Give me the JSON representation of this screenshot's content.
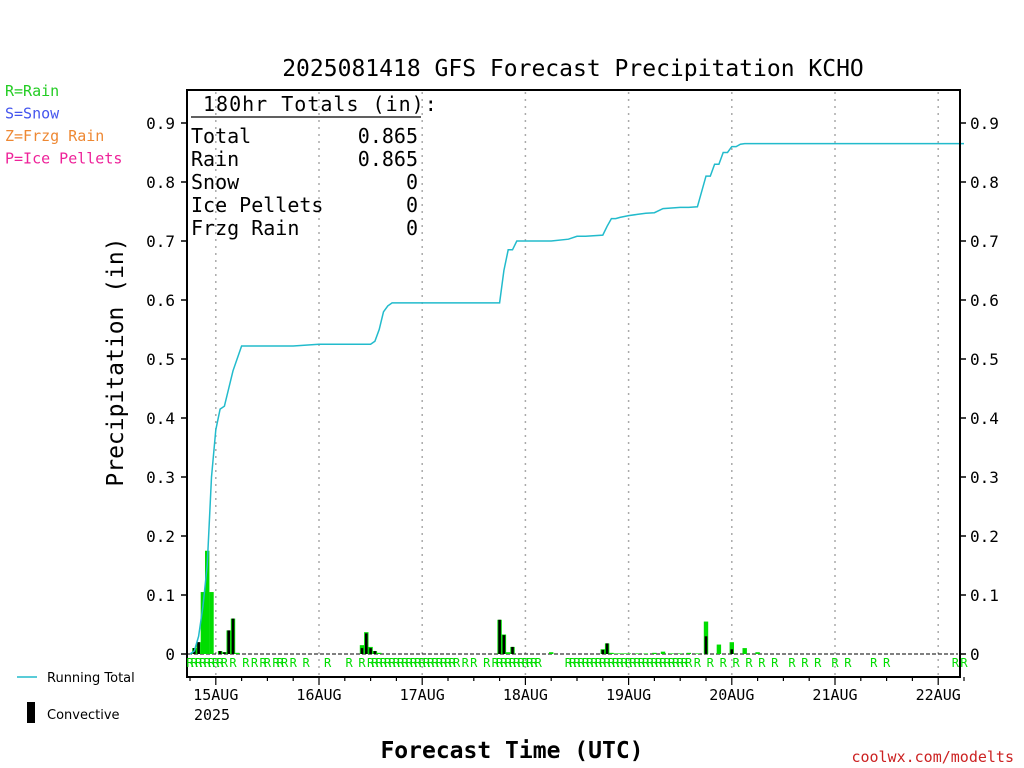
{
  "chart_data": {
    "type": "bar",
    "title": "2025081418 GFS Forecast Precipitation KCHO",
    "xlabel": "Forecast Time (UTC)",
    "ylabel": "Precipitation (in)",
    "ylim": [
      0,
      0.95
    ],
    "yticks": [
      "0",
      "0.1",
      "0.2",
      "0.3",
      "0.4",
      "0.5",
      "0.6",
      "0.7",
      "0.8",
      "0.9"
    ],
    "x_day_ticks": [
      "15AUG",
      "16AUG",
      "17AUG",
      "18AUG",
      "19AUG",
      "20AUG",
      "21AUG",
      "22AUG"
    ],
    "x_year_label": "2025",
    "grid": "vertical-dotted",
    "credit": "coolwx.com/modelts",
    "ptype_legend": [
      {
        "label": "R=Rain",
        "color": "#22cc22"
      },
      {
        "label": "S=Snow",
        "color": "#4455ee"
      },
      {
        "label": "Z=Frzg Rain",
        "color": "#ee8833"
      },
      {
        "label": "P=Ice Pellets",
        "color": "#ee2299"
      }
    ],
    "series_legend": [
      {
        "label": "Running Total",
        "color": "#22bbcc"
      },
      {
        "label": "Convective",
        "color": "#000000"
      }
    ],
    "totals_box": {
      "title": "180hr Totals (in):",
      "rows": [
        {
          "label": "Total",
          "value": "0.865"
        },
        {
          "label": "Rain",
          "value": "0.865"
        },
        {
          "label": "Snow",
          "value": "0"
        },
        {
          "label": "Ice Pellets",
          "value": "0"
        },
        {
          "label": "Frzg Rain",
          "value": "0"
        }
      ]
    },
    "colors": {
      "rain": "#00dd00",
      "convective": "#000000",
      "running_total": "#22bbcc",
      "axis": "#000000",
      "grid": "#aaaaaa"
    },
    "x_units": "hours after 2025-08-14 18Z",
    "running_total": {
      "x": [
        0,
        1,
        2,
        3,
        4,
        5,
        6,
        7,
        8,
        9,
        10,
        12,
        14,
        24,
        30,
        36,
        40,
        42,
        43,
        44,
        45,
        46,
        47,
        48,
        54,
        60,
        66,
        70,
        72,
        73,
        74,
        75,
        76,
        77,
        78,
        84,
        88,
        90,
        92,
        96,
        97,
        98,
        99,
        100,
        102,
        104,
        106,
        108,
        110,
        112,
        114,
        116,
        118,
        120,
        121,
        122,
        123,
        124,
        125,
        126,
        127,
        128,
        129,
        130,
        132,
        140,
        150,
        160,
        168,
        178,
        180
      ],
      "y": [
        0,
        0.005,
        0.03,
        0.08,
        0.15,
        0.3,
        0.38,
        0.415,
        0.42,
        0.45,
        0.48,
        0.522,
        0.522,
        0.522,
        0.525,
        0.525,
        0.525,
        0.525,
        0.53,
        0.55,
        0.58,
        0.59,
        0.595,
        0.595,
        0.595,
        0.595,
        0.595,
        0.595,
        0.595,
        0.65,
        0.685,
        0.685,
        0.7,
        0.7,
        0.7,
        0.7,
        0.703,
        0.708,
        0.708,
        0.71,
        0.725,
        0.738,
        0.738,
        0.74,
        0.743,
        0.745,
        0.747,
        0.748,
        0.755,
        0.756,
        0.757,
        0.757,
        0.758,
        0.81,
        0.81,
        0.83,
        0.83,
        0.85,
        0.85,
        0.86,
        0.86,
        0.864,
        0.865,
        0.865,
        0.865,
        0.865,
        0.865,
        0.865,
        0.865,
        0.865,
        0.865
      ]
    },
    "bars": {
      "hour": [
        1,
        2,
        3,
        4,
        5,
        7,
        8,
        9,
        10,
        11,
        40,
        41,
        42,
        43,
        44,
        72,
        73,
        74,
        75,
        84,
        96,
        97,
        98,
        99,
        100,
        101,
        102,
        104,
        106,
        108,
        110,
        112,
        114,
        116,
        118,
        120,
        123,
        126,
        129,
        132,
        180
      ],
      "total": [
        0.01,
        0.02,
        0.105,
        0.175,
        0.105,
        0.005,
        0.003,
        0.04,
        0.06,
        0.002,
        0.015,
        0.037,
        0.012,
        0.005,
        0.002,
        0.058,
        0.033,
        0.003,
        0.012,
        0.003,
        0.008,
        0.018,
        0.002,
        0.001,
        0.001,
        0.001,
        0.001,
        0.001,
        0.001,
        0.002,
        0.004,
        0.001,
        0.001,
        0.002,
        0.001,
        0.055,
        0.016,
        0.02,
        0.01,
        0.003,
        0.0
      ],
      "convective": [
        0.01,
        0.02,
        0.0,
        0.0,
        0.0,
        0.005,
        0.003,
        0.04,
        0.06,
        0.0,
        0.01,
        0.035,
        0.01,
        0.005,
        0.0,
        0.058,
        0.032,
        0.0,
        0.012,
        0.0,
        0.007,
        0.018,
        0.0,
        0.0,
        0.0,
        0.0,
        0.0,
        0.0,
        0.0,
        0.0,
        0.0,
        0.0,
        0.0,
        0.0,
        0.0,
        0.03,
        0.0,
        0.008,
        0.0,
        0.0,
        0.0
      ]
    },
    "ptype_row": {
      "symbol": "R",
      "hours": [
        0,
        1,
        2,
        3,
        4,
        5,
        6,
        7,
        8,
        10,
        13,
        15,
        17,
        18,
        20,
        21,
        22,
        24,
        27,
        32,
        37,
        40,
        42,
        43,
        44,
        45,
        46,
        47,
        48,
        49,
        50,
        51,
        52,
        53,
        54,
        55,
        56,
        57,
        58,
        59,
        60,
        61,
        62,
        64,
        66,
        69,
        71,
        72,
        73,
        74,
        75,
        76,
        77,
        78,
        79,
        80,
        81,
        88,
        89,
        90,
        91,
        92,
        93,
        94,
        95,
        96,
        97,
        98,
        99,
        100,
        101,
        102,
        103,
        104,
        105,
        106,
        107,
        108,
        109,
        110,
        111,
        112,
        113,
        114,
        115,
        116,
        118,
        121,
        124,
        127,
        130,
        133,
        136,
        140,
        143,
        146,
        150,
        153,
        159,
        162,
        178,
        180
      ]
    }
  }
}
